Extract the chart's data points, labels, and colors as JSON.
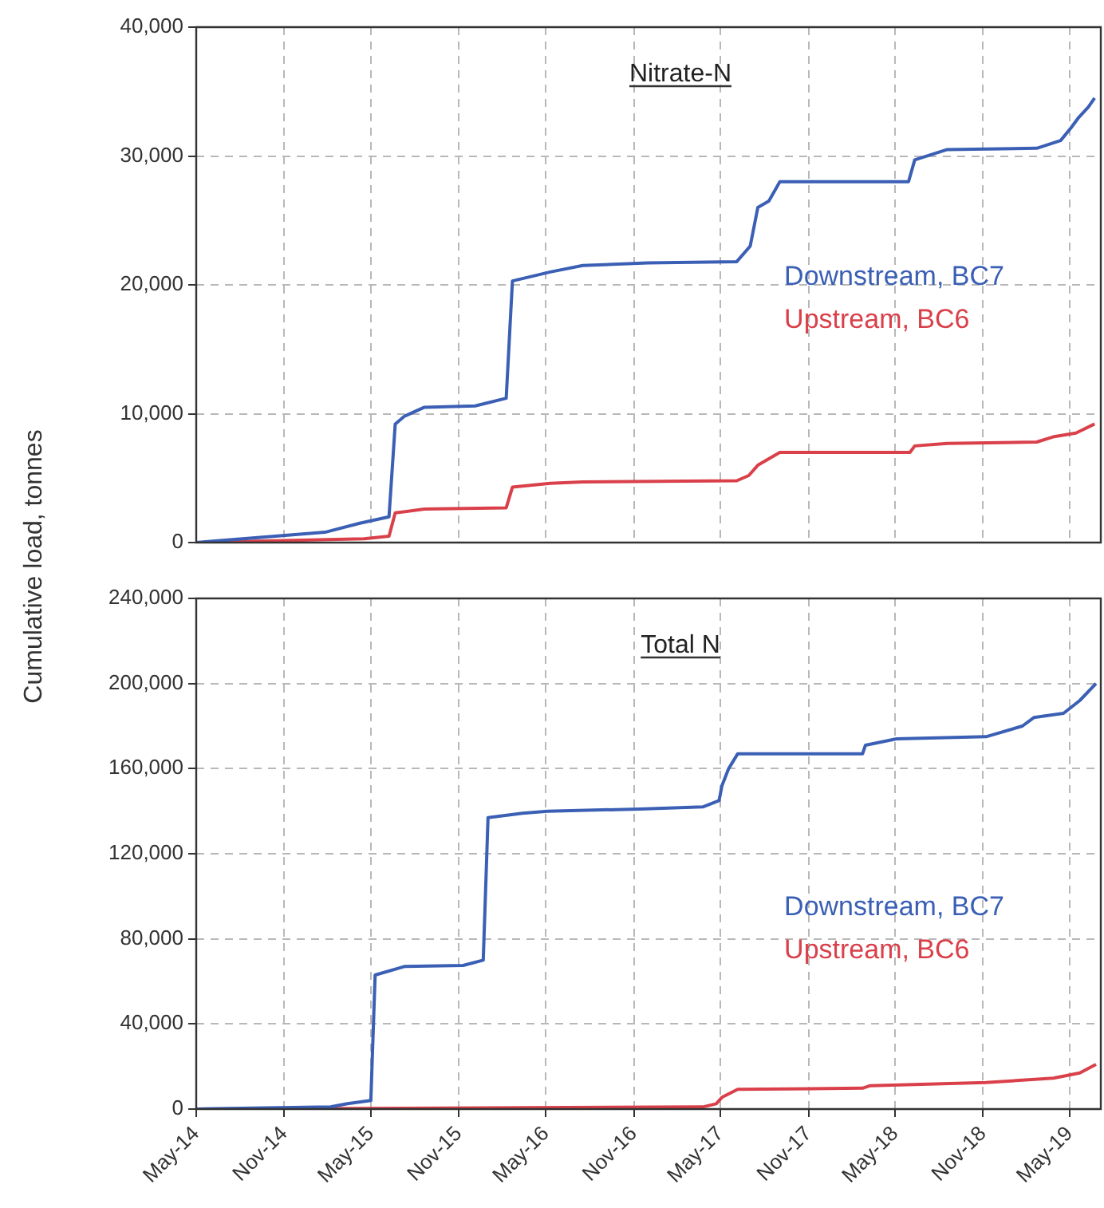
{
  "chart_data": [
    {
      "type": "line",
      "title": "Nitrate-N",
      "ylabel": "Cumulative load, tonnes",
      "xlim": [
        "2014-05-01",
        "2019-07-05"
      ],
      "ylim": [
        0,
        40000
      ],
      "yticks": [
        {
          "value": 0,
          "label": "0"
        },
        {
          "value": 10000,
          "label": "10,000"
        },
        {
          "value": 20000,
          "label": "20,000"
        },
        {
          "value": 30000,
          "label": "30,000"
        },
        {
          "value": 40000,
          "label": "40,000"
        }
      ],
      "xticks": [
        {
          "value": "2014-05-01",
          "label": null
        },
        {
          "value": "2014-11-01",
          "label": null
        },
        {
          "value": "2015-05-01",
          "label": null
        },
        {
          "value": "2015-11-01",
          "label": null
        },
        {
          "value": "2016-05-01",
          "label": null
        },
        {
          "value": "2016-11-01",
          "label": null
        },
        {
          "value": "2017-05-01",
          "label": null
        },
        {
          "value": "2017-11-01",
          "label": null
        },
        {
          "value": "2018-05-01",
          "label": null
        },
        {
          "value": "2018-11-01",
          "label": null
        },
        {
          "value": "2019-05-01",
          "label": null
        }
      ],
      "tick_labels": "y",
      "grid": true,
      "legend": "right",
      "series": [
        {
          "name": "Downstream, BC7",
          "color": "#3a5fb4",
          "x": [
            "2014-05-01",
            "2015-01-25",
            "2015-04-08",
            "2015-06-08",
            "2015-06-21",
            "2015-07-10",
            "2015-08-21",
            "2015-12-05",
            "2016-02-08",
            "2016-02-21",
            "2016-05-10",
            "2016-07-17",
            "2016-11-30",
            "2017-06-04",
            "2017-07-02",
            "2017-07-18",
            "2017-08-10",
            "2017-09-02",
            "2018-05-29",
            "2018-06-11",
            "2018-08-18",
            "2019-02-21",
            "2019-04-12",
            "2019-05-04",
            "2019-05-20",
            "2019-06-09",
            "2019-06-22"
          ],
          "values": [
            0,
            800,
            1500,
            2000,
            9200,
            9800,
            10500,
            10600,
            11200,
            20300,
            21000,
            21500,
            21700,
            21800,
            23000,
            26000,
            26500,
            28000,
            28000,
            29700,
            30500,
            30600,
            31200,
            32200,
            33000,
            33800,
            34500
          ]
        },
        {
          "name": "Upstream, BC6",
          "color": "#d9404a",
          "x": [
            "2014-05-01",
            "2015-04-17",
            "2015-06-08",
            "2015-06-21",
            "2015-08-21",
            "2016-02-08",
            "2016-02-21",
            "2016-05-10",
            "2016-07-17",
            "2017-06-04",
            "2017-06-29",
            "2017-07-18",
            "2017-09-02",
            "2018-06-01",
            "2018-06-11",
            "2018-08-18",
            "2019-02-21",
            "2019-03-27",
            "2019-05-14",
            "2019-06-22"
          ],
          "values": [
            0,
            300,
            500,
            2300,
            2600,
            2700,
            4300,
            4600,
            4700,
            4800,
            5200,
            6000,
            7000,
            7000,
            7500,
            7700,
            7800,
            8200,
            8500,
            9200
          ]
        }
      ]
    },
    {
      "type": "line",
      "title": "Total N",
      "xlim": [
        "2014-05-01",
        "2019-07-05"
      ],
      "ylim": [
        0,
        240000
      ],
      "yticks": [
        {
          "value": 0,
          "label": "0"
        },
        {
          "value": 40000,
          "label": "40,000"
        },
        {
          "value": 80000,
          "label": "80,000"
        },
        {
          "value": 120000,
          "label": "120,000"
        },
        {
          "value": 160000,
          "label": "160,000"
        },
        {
          "value": 200000,
          "label": "200,000"
        },
        {
          "value": 240000,
          "label": "240,000"
        }
      ],
      "xticks": [
        {
          "value": "2014-05-01",
          "label": "May-14"
        },
        {
          "value": "2014-11-01",
          "label": "Nov-14"
        },
        {
          "value": "2015-05-01",
          "label": "May-15"
        },
        {
          "value": "2015-11-01",
          "label": "Nov-15"
        },
        {
          "value": "2016-05-01",
          "label": "May-16"
        },
        {
          "value": "2016-11-01",
          "label": "Nov-16"
        },
        {
          "value": "2017-05-01",
          "label": "May-17"
        },
        {
          "value": "2017-11-01",
          "label": "Nov-17"
        },
        {
          "value": "2018-05-01",
          "label": "May-18"
        },
        {
          "value": "2018-11-01",
          "label": "Nov-18"
        },
        {
          "value": "2019-05-01",
          "label": "May-19"
        }
      ],
      "grid": true,
      "legend": "right",
      "series": [
        {
          "name": "Downstream, BC7",
          "color": "#3a5fb4",
          "x": [
            "2014-05-01",
            "2015-02-06",
            "2015-03-13",
            "2015-05-01",
            "2015-05-10",
            "2015-07-10",
            "2015-11-10",
            "2015-12-22",
            "2016-01-01",
            "2016-03-13",
            "2016-05-04",
            "2016-11-13",
            "2017-03-25",
            "2017-04-28",
            "2017-05-04",
            "2017-05-18",
            "2017-06-06",
            "2018-02-22",
            "2018-02-28",
            "2018-05-04",
            "2018-11-07",
            "2019-01-22",
            "2019-02-15",
            "2019-04-18",
            "2019-05-22",
            "2019-06-25"
          ],
          "values": [
            0,
            1000,
            2500,
            4000,
            63000,
            67000,
            67500,
            70000,
            137000,
            139000,
            140000,
            141000,
            142000,
            145000,
            152000,
            160000,
            167000,
            167000,
            171000,
            174000,
            175000,
            180000,
            184000,
            186000,
            192000,
            200000
          ]
        },
        {
          "name": "Upstream, BC6",
          "color": "#d9404a",
          "x": [
            "2014-05-01",
            "2017-03-25",
            "2017-04-22",
            "2017-05-04",
            "2017-06-06",
            "2018-02-22",
            "2018-03-10",
            "2018-11-07",
            "2019-03-28",
            "2019-05-22",
            "2019-06-25"
          ],
          "values": [
            0,
            1000,
            2500,
            5500,
            9300,
            9800,
            11000,
            12500,
            14500,
            17000,
            21000
          ]
        }
      ]
    }
  ]
}
